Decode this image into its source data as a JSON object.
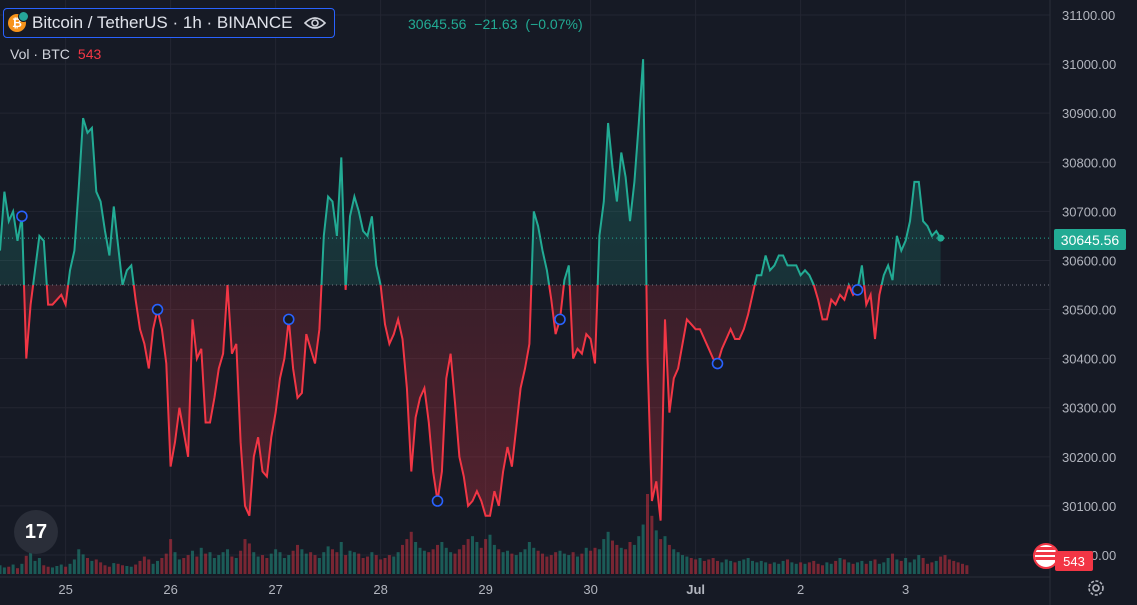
{
  "header": {
    "coin_letter": "₿",
    "symbol": "Bitcoin / TetherUS · 1h · BINANCE",
    "ohlc_close": "30645.56",
    "ohlc_change": "−21.63",
    "ohlc_change_pct": "(−0.07%)",
    "volume_label": "Vol · BTC",
    "volume_value": "543"
  },
  "price_label": "30645.56",
  "volume_tag": "543",
  "logo_text": "17",
  "colors": {
    "up": "#22ab94",
    "down": "#f23645",
    "bg": "#161a25",
    "grid": "#232632",
    "text": "#b2b5be"
  },
  "chart_data": {
    "type": "line",
    "baseline": 30550,
    "ylim": [
      30000,
      31120
    ],
    "y_ticks": [
      31100,
      31000,
      30900,
      30800,
      30700,
      30600,
      30500,
      30400,
      30300,
      30200,
      30100,
      30000
    ],
    "y_tick_labels": [
      "31100.00",
      "31000.00",
      "30900.00",
      "30800.00",
      "30700.00",
      "30600.00",
      "30500.00",
      "30400.00",
      "30300.00",
      "30200.00",
      "30100.00",
      "30000.00"
    ],
    "x_range": [
      0,
      240
    ],
    "x_ticks": [
      {
        "x": 15,
        "label": "25"
      },
      {
        "x": 39,
        "label": "26"
      },
      {
        "x": 63,
        "label": "27"
      },
      {
        "x": 87,
        "label": "28"
      },
      {
        "x": 111,
        "label": "29"
      },
      {
        "x": 135,
        "label": "30"
      },
      {
        "x": 159,
        "label": "Jul"
      },
      {
        "x": 183,
        "label": "2"
      },
      {
        "x": 207,
        "label": "3"
      }
    ],
    "series": [
      {
        "values": [
          30620,
          30740,
          30680,
          30700,
          30640,
          30690,
          30400,
          30510,
          30580,
          30650,
          30640,
          30510,
          30510,
          30520,
          30530,
          30510,
          30580,
          30620,
          30750,
          30890,
          30860,
          30870,
          30740,
          30720,
          30660,
          30610,
          30710,
          30630,
          30550,
          30580,
          30590,
          30520,
          30460,
          30430,
          30380,
          30460,
          30500,
          30460,
          30390,
          30180,
          30230,
          30300,
          30250,
          30200,
          30480,
          30400,
          30420,
          30270,
          30270,
          30320,
          30380,
          30410,
          30550,
          30410,
          30430,
          30230,
          30100,
          30080,
          30200,
          30240,
          30170,
          30160,
          30240,
          30290,
          30360,
          30400,
          30480,
          30380,
          30320,
          30330,
          30450,
          30420,
          30390,
          30460,
          30650,
          30730,
          30720,
          30650,
          30810,
          30540,
          30690,
          30730,
          30700,
          30660,
          30650,
          30690,
          30590,
          30550,
          30470,
          30430,
          30450,
          30480,
          30440,
          30340,
          30170,
          30280,
          30320,
          30340,
          30270,
          30170,
          30110,
          30170,
          30360,
          30410,
          30310,
          30200,
          30160,
          30100,
          30110,
          30130,
          30110,
          30080,
          30080,
          30130,
          30100,
          30170,
          30220,
          30180,
          30260,
          30340,
          30380,
          30430,
          30700,
          30670,
          30620,
          30580,
          30520,
          30450,
          30480,
          30560,
          30590,
          30400,
          30420,
          30410,
          30450,
          30440,
          30390,
          30650,
          30720,
          30880,
          30790,
          30720,
          30820,
          30770,
          30680,
          30760,
          30880,
          31010,
          30400,
          30110,
          30150,
          30070,
          30480,
          30290,
          30360,
          30380,
          30430,
          30480,
          30470,
          30460,
          30460,
          30440,
          30420,
          30400,
          30390,
          30420,
          30440,
          30460,
          30440,
          30440,
          30460,
          30490,
          30530,
          30570,
          30570,
          30610,
          30580,
          30590,
          30610,
          30610,
          30590,
          30590,
          30590,
          30570,
          30580,
          30570,
          30550,
          30520,
          30480,
          30480,
          30520,
          30510,
          30530,
          30520,
          30550,
          30530,
          30540,
          30590,
          30510,
          30530,
          30440,
          30530,
          30570,
          30590,
          30560,
          30650,
          30620,
          30640,
          30680,
          30760,
          30760,
          30680,
          30670,
          30650,
          30660,
          30645.56
        ]
      }
    ],
    "markers_x": [
      5,
      36,
      66,
      100,
      128,
      164,
      196
    ],
    "volumes": [
      12,
      9,
      10,
      13,
      8,
      14,
      25,
      30,
      18,
      22,
      12,
      10,
      9,
      11,
      13,
      10,
      14,
      20,
      34,
      27,
      22,
      18,
      20,
      16,
      12,
      10,
      15,
      14,
      12,
      11,
      10,
      13,
      18,
      24,
      20,
      14,
      18,
      22,
      28,
      48,
      30,
      20,
      22,
      26,
      32,
      24,
      36,
      28,
      30,
      22,
      26,
      30,
      34,
      24,
      22,
      32,
      48,
      42,
      30,
      24,
      26,
      22,
      28,
      34,
      30,
      22,
      26,
      32,
      40,
      34,
      28,
      30,
      26,
      22,
      30,
      38,
      34,
      30,
      44,
      26,
      32,
      30,
      28,
      22,
      24,
      30,
      26,
      20,
      22,
      26,
      24,
      30,
      40,
      48,
      58,
      44,
      36,
      32,
      30,
      34,
      40,
      44,
      36,
      30,
      28,
      34,
      40,
      48,
      52,
      44,
      36,
      48,
      54,
      40,
      34,
      30,
      32,
      28,
      26,
      30,
      34,
      44,
      36,
      32,
      28,
      24,
      26,
      30,
      32,
      28,
      26,
      30,
      24,
      28,
      36,
      32,
      36,
      34,
      48,
      58,
      46,
      40,
      36,
      34,
      44,
      40,
      52,
      68,
      110,
      80,
      60,
      48,
      52,
      40,
      34,
      30,
      26,
      24,
      22,
      20,
      22,
      18,
      20,
      22,
      18,
      16,
      20,
      18,
      16,
      18,
      20,
      22,
      18,
      16,
      18,
      16,
      14,
      16,
      14,
      18,
      20,
      16,
      14,
      16,
      14,
      16,
      18,
      14,
      12,
      16,
      14,
      18,
      22,
      20,
      16,
      14,
      16,
      18,
      14,
      18,
      20,
      14,
      16,
      22,
      28,
      20,
      18,
      22,
      16,
      20,
      26,
      22,
      14,
      16,
      18,
      24,
      26,
      20,
      18,
      16,
      14,
      12
    ]
  }
}
